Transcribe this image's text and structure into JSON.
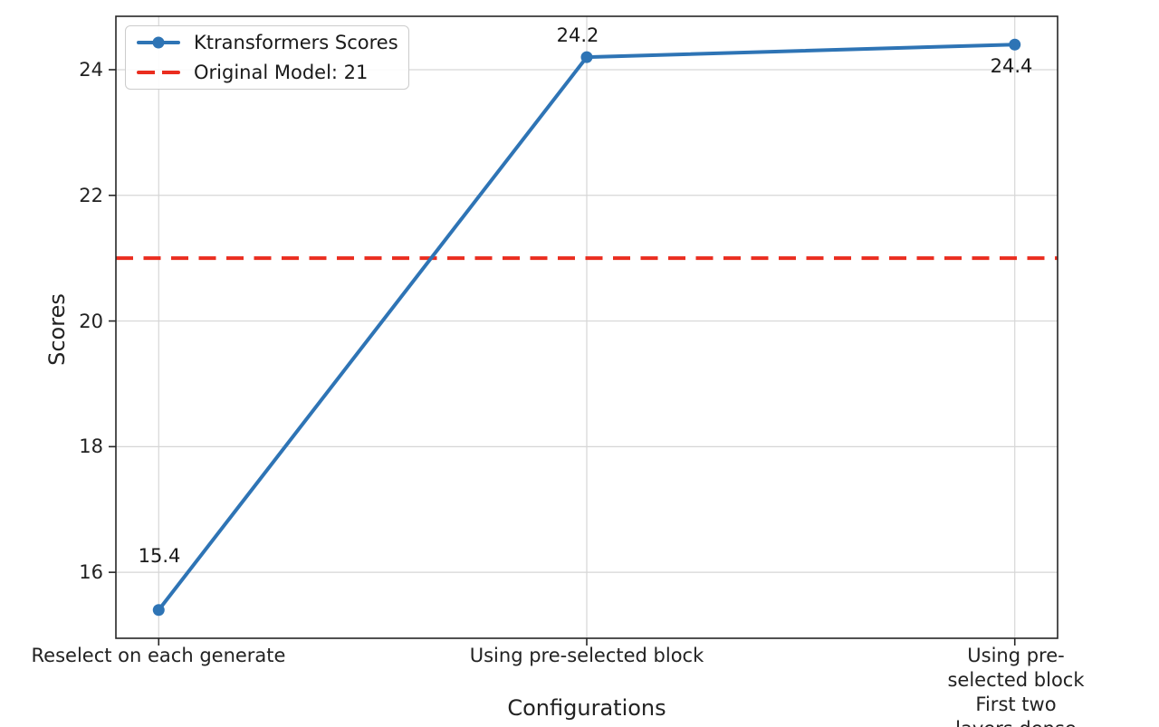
{
  "chart_data": {
    "type": "line",
    "title": "",
    "xlabel": "Configurations",
    "ylabel": "Scores",
    "categories": [
      "Reselect on each generate",
      "Using pre-selected block",
      "Using pre-selected block\nFirst two layers dense"
    ],
    "series": [
      {
        "name": "Ktransformers Scores",
        "values": [
          15.4,
          24.2,
          24.4
        ],
        "color": "#2e74b5",
        "marker": "circle",
        "data_labels": [
          "15.4",
          "24.2",
          "24.4"
        ]
      }
    ],
    "reference_line": {
      "label": "Original Model: 21",
      "value": 21,
      "color": "#ea2d1f",
      "style": "dashed"
    },
    "yticks": [
      "16",
      "18",
      "20",
      "22",
      "24"
    ],
    "ylim": [
      14.95,
      24.85
    ],
    "grid": true,
    "legend_position": "upper-left",
    "colors": {
      "grid": "#d6d6d6",
      "spine": "#262626",
      "text": "#222222"
    }
  }
}
